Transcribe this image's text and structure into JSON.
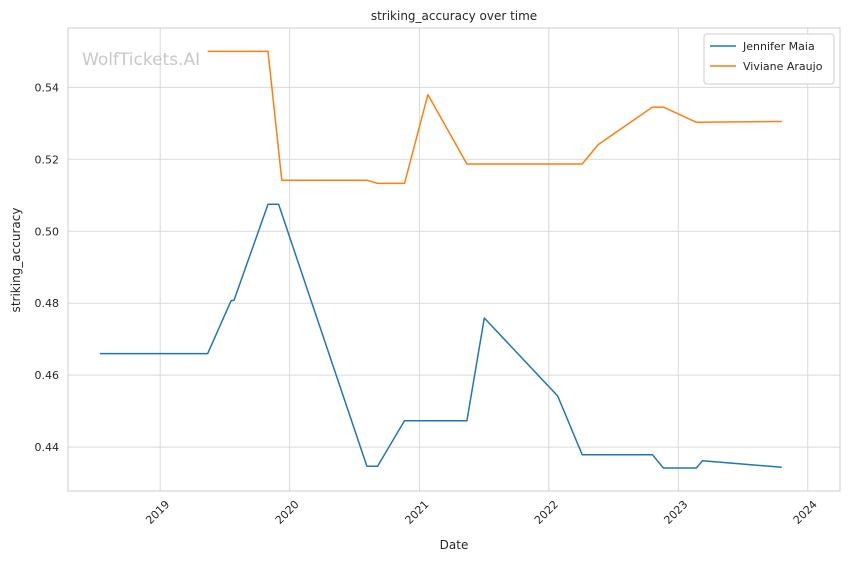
{
  "watermark": "WolfTickets.AI",
  "chart_data": {
    "type": "line",
    "title": "striking_accuracy over time",
    "xlabel": "Date",
    "ylabel": "striking_accuracy",
    "x_type": "date",
    "xlim": [
      "2018-04-16",
      "2024-04-01"
    ],
    "ylim": [
      0.4278,
      0.5565
    ],
    "x_ticks": [
      "2019-01-01",
      "2020-01-01",
      "2021-01-01",
      "2022-01-01",
      "2023-01-01",
      "2024-01-01"
    ],
    "x_tick_labels": [
      "2019",
      "2020",
      "2021",
      "2022",
      "2023",
      "2024"
    ],
    "y_ticks": [
      0.44,
      0.46,
      0.48,
      0.5,
      0.52,
      0.54
    ],
    "y_tick_labels": [
      "0.44",
      "0.46",
      "0.48",
      "0.50",
      "0.52",
      "0.54"
    ],
    "grid": true,
    "legend_position": "top-right",
    "series": [
      {
        "name": "Jennifer Maia",
        "color": "#1f77b4",
        "points": [
          [
            "2018-07-15",
            0.466
          ],
          [
            "2019-05-15",
            0.466
          ],
          [
            "2019-07-20",
            0.4807
          ],
          [
            "2019-07-28",
            0.4808
          ],
          [
            "2019-11-01",
            0.5075
          ],
          [
            "2019-12-01",
            0.5075
          ],
          [
            "2020-08-06",
            0.4347
          ],
          [
            "2020-09-05",
            0.4347
          ],
          [
            "2020-11-20",
            0.4473
          ],
          [
            "2021-05-15",
            0.4473
          ],
          [
            "2021-07-03",
            0.4759
          ],
          [
            "2022-01-26",
            0.4542
          ],
          [
            "2022-04-05",
            0.4379
          ],
          [
            "2022-10-20",
            0.4379
          ],
          [
            "2022-11-20",
            0.4342
          ],
          [
            "2023-02-21",
            0.4342
          ],
          [
            "2023-03-10",
            0.4362
          ],
          [
            "2023-10-20",
            0.4344
          ]
        ]
      },
      {
        "name": "Viviane Araujo",
        "color": "#ff7f0e",
        "points": [
          [
            "2019-05-15",
            0.55
          ],
          [
            "2019-11-01",
            0.55
          ],
          [
            "2019-12-10",
            0.5142
          ],
          [
            "2020-08-06",
            0.5142
          ],
          [
            "2020-09-05",
            0.5133
          ],
          [
            "2020-11-20",
            0.5133
          ],
          [
            "2021-01-25",
            0.538
          ],
          [
            "2021-05-15",
            0.5187
          ],
          [
            "2022-04-05",
            0.5187
          ],
          [
            "2022-05-20",
            0.5241
          ],
          [
            "2022-10-20",
            0.5345
          ],
          [
            "2022-11-20",
            0.5345
          ],
          [
            "2023-02-21",
            0.5303
          ],
          [
            "2023-10-20",
            0.5305
          ]
        ]
      }
    ]
  }
}
